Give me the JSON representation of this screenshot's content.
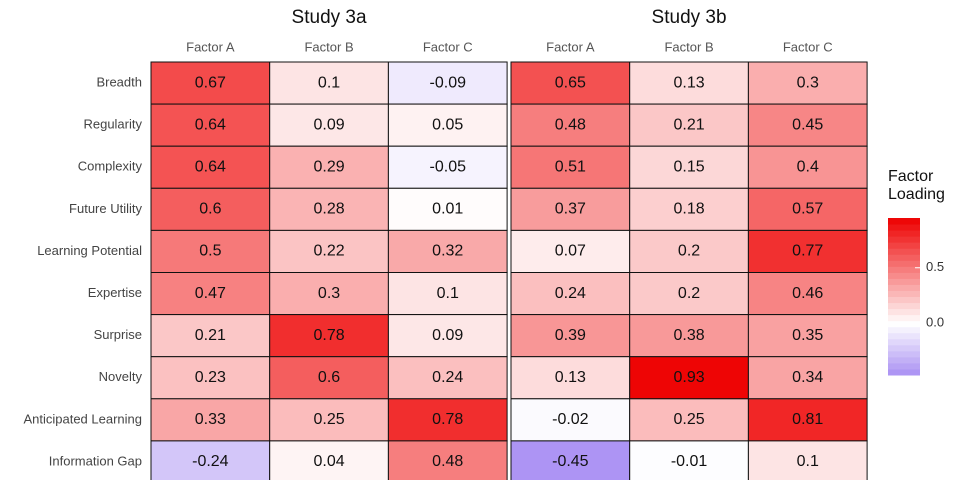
{
  "chart_data": [
    {
      "type": "heatmap",
      "title": "Study 3a",
      "x_categories": [
        "Factor A",
        "Factor B",
        "Factor C"
      ],
      "y_categories": [
        "Breadth",
        "Regularity",
        "Complexity",
        "Future Utility",
        "Learning Potential",
        "Expertise",
        "Surprise",
        "Novelty",
        "Anticipated Learning",
        "Information Gap"
      ],
      "values": [
        [
          0.67,
          0.1,
          -0.09
        ],
        [
          0.64,
          0.09,
          0.05
        ],
        [
          0.64,
          0.29,
          -0.05
        ],
        [
          0.6,
          0.28,
          0.01
        ],
        [
          0.5,
          0.22,
          0.32
        ],
        [
          0.47,
          0.3,
          0.1
        ],
        [
          0.21,
          0.78,
          0.09
        ],
        [
          0.23,
          0.6,
          0.24
        ],
        [
          0.33,
          0.25,
          0.78
        ],
        [
          -0.24,
          0.04,
          0.48
        ]
      ]
    },
    {
      "type": "heatmap",
      "title": "Study 3b",
      "x_categories": [
        "Factor A",
        "Factor B",
        "Factor C"
      ],
      "values": [
        [
          0.65,
          0.13,
          0.3
        ],
        [
          0.48,
          0.21,
          0.45
        ],
        [
          0.51,
          0.15,
          0.4
        ],
        [
          0.37,
          0.18,
          0.57
        ],
        [
          0.07,
          0.2,
          0.77
        ],
        [
          0.24,
          0.2,
          0.46
        ],
        [
          0.39,
          0.38,
          0.35
        ],
        [
          0.13,
          0.93,
          0.34
        ],
        [
          -0.02,
          0.25,
          0.81
        ],
        [
          -0.45,
          -0.01,
          0.1
        ]
      ]
    }
  ],
  "legend": {
    "title": "Factor Loading",
    "lim": [
      -0.47,
      0.95
    ],
    "ticks": [
      0.5,
      {
        "value": 0,
        "label": "0.0"
      }
    ],
    "colors": {
      "low": "#a98ff3",
      "mid": "#ffffff",
      "high": "#ee0000"
    }
  }
}
